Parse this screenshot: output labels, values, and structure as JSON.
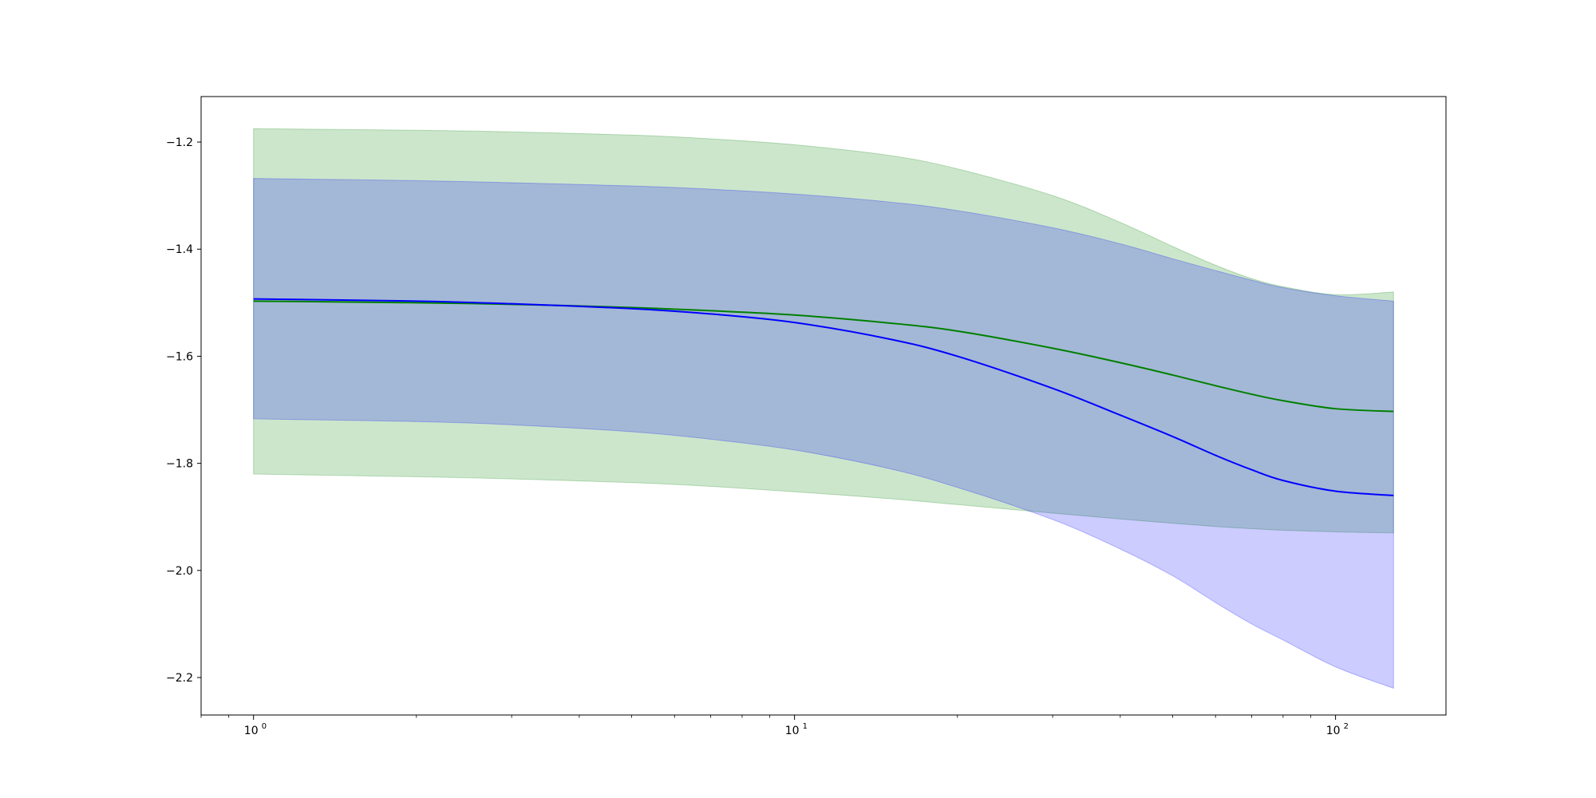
{
  "chart_data": {
    "type": "line",
    "title": "",
    "xlabel": "",
    "ylabel": "",
    "xscale": "log",
    "xlim": [
      0.8,
      160
    ],
    "ylim": [
      -2.27,
      -1.115
    ],
    "grid": false,
    "legend": "none",
    "x_ticks": [
      {
        "value": 1,
        "label": "10",
        "exp": "0"
      },
      {
        "value": 10,
        "label": "10",
        "exp": "1"
      },
      {
        "value": 100,
        "label": "10",
        "exp": "2"
      }
    ],
    "y_ticks": [
      {
        "value": -1.2,
        "label": "−1.2"
      },
      {
        "value": -1.4,
        "label": "−1.4"
      },
      {
        "value": -1.6,
        "label": "−1.6"
      },
      {
        "value": -1.8,
        "label": "−1.8"
      },
      {
        "value": -2.0,
        "label": "−2.0"
      },
      {
        "value": -2.2,
        "label": "−2.2"
      }
    ],
    "x": [
      1,
      2,
      3,
      5,
      7,
      10,
      15,
      20,
      30,
      40,
      50,
      60,
      70,
      80,
      100,
      128
    ],
    "bands": [
      {
        "color": "#008000",
        "fill_alpha": 0.2,
        "upper": [
          -1.175,
          -1.178,
          -1.181,
          -1.187,
          -1.194,
          -1.205,
          -1.225,
          -1.25,
          -1.3,
          -1.35,
          -1.395,
          -1.43,
          -1.455,
          -1.47,
          -1.485,
          -1.48
        ],
        "lower": [
          -1.82,
          -1.825,
          -1.829,
          -1.836,
          -1.843,
          -1.853,
          -1.866,
          -1.877,
          -1.893,
          -1.904,
          -1.912,
          -1.918,
          -1.922,
          -1.925,
          -1.928,
          -1.93
        ]
      },
      {
        "color": "#0000ff",
        "fill_alpha": 0.2,
        "upper": [
          -1.268,
          -1.272,
          -1.276,
          -1.282,
          -1.288,
          -1.297,
          -1.312,
          -1.328,
          -1.36,
          -1.39,
          -1.418,
          -1.44,
          -1.458,
          -1.472,
          -1.487,
          -1.497
        ],
        "lower": [
          -1.717,
          -1.722,
          -1.728,
          -1.741,
          -1.755,
          -1.775,
          -1.81,
          -1.845,
          -1.905,
          -1.96,
          -2.01,
          -2.06,
          -2.1,
          -2.13,
          -2.18,
          -2.22
        ]
      }
    ],
    "series": [
      {
        "color": "#008000",
        "values": [
          -1.497,
          -1.5,
          -1.503,
          -1.509,
          -1.515,
          -1.523,
          -1.538,
          -1.553,
          -1.585,
          -1.612,
          -1.635,
          -1.655,
          -1.671,
          -1.683,
          -1.698,
          -1.703
        ]
      },
      {
        "color": "#0000ff",
        "values": [
          -1.493,
          -1.497,
          -1.502,
          -1.511,
          -1.521,
          -1.537,
          -1.568,
          -1.6,
          -1.66,
          -1.71,
          -1.75,
          -1.785,
          -1.812,
          -1.832,
          -1.852,
          -1.86
        ]
      }
    ]
  }
}
